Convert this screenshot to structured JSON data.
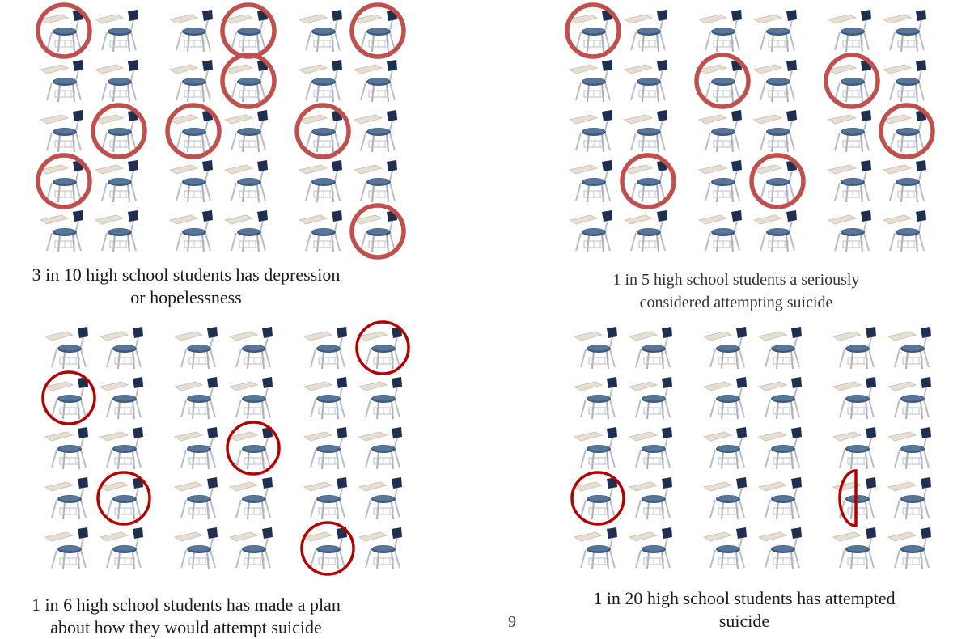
{
  "page_number": "9",
  "colors": {
    "highlight_light": "#c0504d",
    "highlight_dark": "#b30000"
  },
  "panels": [
    {
      "id": "depression",
      "caption_line1": "3 in 10 high school students has depression",
      "caption_line2": "or hopelessness",
      "highlight_style": "light",
      "highlighted": [
        [
          0,
          0
        ],
        [
          0,
          3
        ],
        [
          0,
          5
        ],
        [
          1,
          3
        ],
        [
          2,
          1
        ],
        [
          2,
          2
        ],
        [
          2,
          4
        ],
        [
          3,
          0
        ],
        [
          4,
          5
        ]
      ],
      "partial": []
    },
    {
      "id": "considered",
      "caption_line1": "1 in 5 high school students a seriously",
      "caption_line2": "considered attempting suicide",
      "highlight_style": "light",
      "highlighted": [
        [
          0,
          0
        ],
        [
          1,
          2
        ],
        [
          1,
          4
        ],
        [
          2,
          5
        ],
        [
          3,
          1
        ],
        [
          3,
          3
        ]
      ],
      "partial": []
    },
    {
      "id": "plan",
      "caption_line1": "1 in 6 high school students has made a plan",
      "caption_line2": "about how they would attempt suicide",
      "highlight_style": "dark",
      "highlighted": [
        [
          0,
          5
        ],
        [
          1,
          0
        ],
        [
          2,
          3
        ],
        [
          3,
          1
        ],
        [
          4,
          4
        ]
      ],
      "partial": []
    },
    {
      "id": "attempted",
      "caption_line1": "1 in 20 high school students has attempted",
      "caption_line2": "suicide",
      "highlight_style": "dark",
      "highlighted": [
        [
          3,
          0
        ]
      ],
      "partial": [
        [
          3,
          4
        ]
      ]
    }
  ]
}
